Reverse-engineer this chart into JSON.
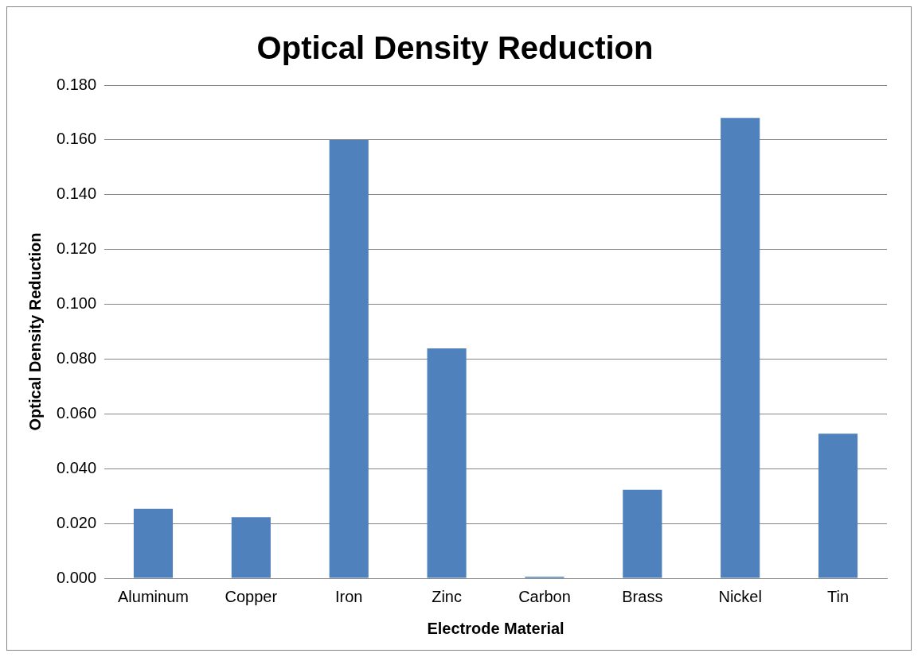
{
  "chart_data": {
    "type": "bar",
    "title": "Optical Density Reduction",
    "xlabel": "Electrode Material",
    "ylabel": "Optical Density Reduction",
    "categories": [
      "Aluminum",
      "Copper",
      "Iron",
      "Zinc",
      "Carbon",
      "Brass",
      "Nickel",
      "Tin"
    ],
    "values": [
      0.0253,
      0.0223,
      0.16,
      0.0839,
      0.0006,
      0.0323,
      0.168,
      0.0528
    ],
    "color": "#4f81bd",
    "ylim": [
      0,
      0.18
    ],
    "yticks": [
      {
        "value": 0,
        "label": "0.000"
      },
      {
        "value": 0.02,
        "label": "0.020"
      },
      {
        "value": 0.04,
        "label": "0.040"
      },
      {
        "value": 0.06,
        "label": "0.060"
      },
      {
        "value": 0.08,
        "label": "0.080"
      },
      {
        "value": 0.1,
        "label": "0.100"
      },
      {
        "value": 0.12,
        "label": "0.120"
      },
      {
        "value": 0.14,
        "label": "0.140"
      },
      {
        "value": 0.16,
        "label": "0.160"
      },
      {
        "value": 0.18,
        "label": "0.180"
      }
    ],
    "grid": "y",
    "legend": false
  }
}
